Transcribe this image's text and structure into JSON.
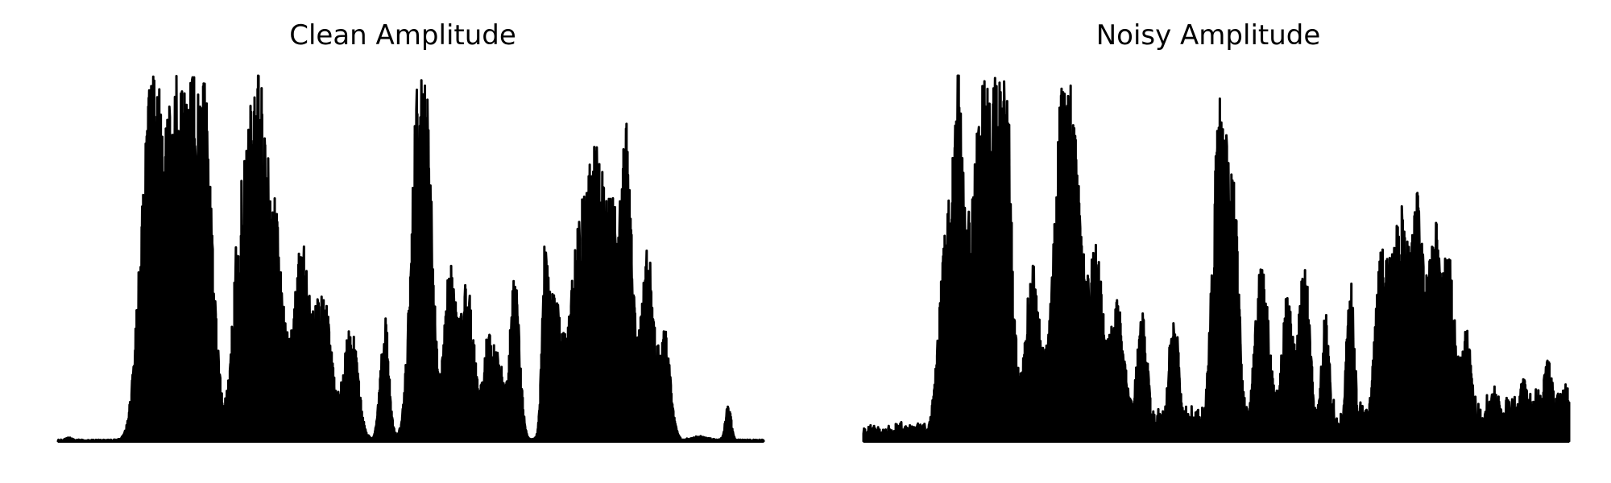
{
  "chart_data": [
    {
      "type": "area",
      "title": "Clean Amplitude",
      "xlabel": "",
      "ylabel": "",
      "axes_visible": false,
      "grid": false,
      "color": "#000000",
      "peaks": [
        [
          0.015,
          0.004,
          0.008
        ],
        [
          0.125,
          0.012,
          0.67
        ],
        [
          0.135,
          0.006,
          0.59
        ],
        [
          0.155,
          0.014,
          0.78
        ],
        [
          0.185,
          0.014,
          0.9
        ],
        [
          0.195,
          0.012,
          0.88
        ],
        [
          0.215,
          0.01,
          0.45
        ],
        [
          0.257,
          0.01,
          0.53
        ],
        [
          0.28,
          0.012,
          0.86
        ],
        [
          0.305,
          0.014,
          0.63
        ],
        [
          0.345,
          0.01,
          0.52
        ],
        [
          0.375,
          0.012,
          0.42
        ],
        [
          0.415,
          0.01,
          0.32
        ],
        [
          0.463,
          0.006,
          0.35
        ],
        [
          0.51,
          0.01,
          0.92
        ],
        [
          0.525,
          0.008,
          0.6
        ],
        [
          0.555,
          0.008,
          0.48
        ],
        [
          0.58,
          0.01,
          0.43
        ],
        [
          0.61,
          0.007,
          0.29
        ],
        [
          0.625,
          0.006,
          0.22
        ],
        [
          0.647,
          0.007,
          0.46
        ],
        [
          0.69,
          0.004,
          0.42
        ],
        [
          0.702,
          0.009,
          0.38
        ],
        [
          0.74,
          0.016,
          0.57
        ],
        [
          0.765,
          0.012,
          0.57
        ],
        [
          0.79,
          0.012,
          0.57
        ],
        [
          0.808,
          0.007,
          0.67
        ],
        [
          0.835,
          0.009,
          0.54
        ],
        [
          0.86,
          0.008,
          0.3
        ],
        [
          0.91,
          0.012,
          0.01
        ],
        [
          0.95,
          0.004,
          0.1
        ]
      ]
    },
    {
      "type": "area",
      "title": "Noisy Amplitude",
      "xlabel": "",
      "ylabel": "",
      "axes_visible": false,
      "grid": false,
      "color": "#000000",
      "peaks": [
        [
          0.015,
          0.01,
          0.02
        ],
        [
          0.12,
          0.012,
          0.62
        ],
        [
          0.135,
          0.006,
          0.58
        ],
        [
          0.16,
          0.014,
          0.74
        ],
        [
          0.185,
          0.012,
          0.91
        ],
        [
          0.2,
          0.01,
          0.85
        ],
        [
          0.24,
          0.01,
          0.5
        ],
        [
          0.28,
          0.012,
          0.81
        ],
        [
          0.3,
          0.012,
          0.65
        ],
        [
          0.33,
          0.01,
          0.5
        ],
        [
          0.36,
          0.01,
          0.4
        ],
        [
          0.395,
          0.008,
          0.35
        ],
        [
          0.44,
          0.008,
          0.35
        ],
        [
          0.505,
          0.01,
          0.92
        ],
        [
          0.525,
          0.008,
          0.6
        ],
        [
          0.565,
          0.01,
          0.5
        ],
        [
          0.6,
          0.008,
          0.4
        ],
        [
          0.625,
          0.008,
          0.5
        ],
        [
          0.655,
          0.006,
          0.35
        ],
        [
          0.69,
          0.006,
          0.45
        ],
        [
          0.735,
          0.01,
          0.52
        ],
        [
          0.76,
          0.01,
          0.6
        ],
        [
          0.785,
          0.01,
          0.65
        ],
        [
          0.81,
          0.008,
          0.56
        ],
        [
          0.83,
          0.008,
          0.5
        ],
        [
          0.855,
          0.008,
          0.3
        ],
        [
          0.895,
          0.008,
          0.15
        ],
        [
          0.935,
          0.008,
          0.17
        ],
        [
          0.97,
          0.008,
          0.22
        ],
        [
          0.995,
          0.006,
          0.15
        ]
      ]
    }
  ]
}
